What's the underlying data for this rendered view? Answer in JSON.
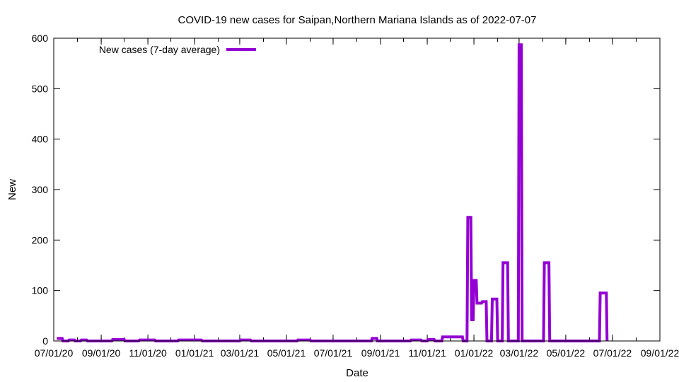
{
  "chart_data": {
    "type": "line",
    "title": "COVID-19 new cases for Saipan,Northern Mariana Islands as of 2022-07-07",
    "xlabel": "Date",
    "ylabel": "New",
    "xlim": [
      "2020-07-01",
      "2022-09-01"
    ],
    "ylim": [
      0,
      600
    ],
    "grid": false,
    "legend_position": "top-left",
    "x_ticks": [
      "07/01/20",
      "09/01/20",
      "11/01/20",
      "01/01/21",
      "03/01/21",
      "05/01/21",
      "07/01/21",
      "09/01/21",
      "11/01/21",
      "01/01/22",
      "03/01/22",
      "05/01/22",
      "07/01/22",
      "09/01/22"
    ],
    "y_ticks": [
      "0",
      "100",
      "200",
      "300",
      "400",
      "500",
      "600"
    ],
    "series": [
      {
        "name": "New cases (7-day average)",
        "color": "#9400d3",
        "x": [
          "2020-07-05",
          "2020-07-12",
          "2020-07-13",
          "2020-07-20",
          "2020-07-21",
          "2020-07-28",
          "2020-07-29",
          "2020-08-05",
          "2020-08-06",
          "2020-08-13",
          "2020-08-14",
          "2020-09-15",
          "2020-09-16",
          "2020-10-01",
          "2020-10-02",
          "2020-10-20",
          "2020-10-21",
          "2020-11-10",
          "2020-11-11",
          "2020-12-10",
          "2020-12-11",
          "2021-01-10",
          "2021-01-11",
          "2021-03-01",
          "2021-03-02",
          "2021-03-15",
          "2021-03-16",
          "2021-05-15",
          "2021-05-16",
          "2021-06-01",
          "2021-06-02",
          "2021-08-20",
          "2021-08-21",
          "2021-08-27",
          "2021-08-28",
          "2021-10-10",
          "2021-10-11",
          "2021-10-24",
          "2021-10-25",
          "2021-11-01",
          "2021-11-02",
          "2021-11-10",
          "2021-11-11",
          "2021-11-20",
          "2021-11-21",
          "2021-12-17",
          "2021-12-18",
          "2021-12-23",
          "2021-12-24",
          "2021-12-28",
          "2021-12-29",
          "2021-12-31",
          "2022-01-01",
          "2022-01-04",
          "2022-01-05",
          "2022-01-11",
          "2022-01-12",
          "2022-01-17",
          "2022-01-18",
          "2022-01-24",
          "2022-01-25",
          "2022-01-31",
          "2022-02-01",
          "2022-02-07",
          "2022-02-08",
          "2022-02-14",
          "2022-02-15",
          "2022-02-21",
          "2022-02-22",
          "2022-02-28",
          "2022-03-01",
          "2022-03-04",
          "2022-03-05",
          "2022-04-02",
          "2022-04-03",
          "2022-04-09",
          "2022-04-10",
          "2022-06-14",
          "2022-06-15",
          "2022-06-23",
          "2022-06-24"
        ],
        "y": [
          5,
          5,
          0,
          0,
          2,
          2,
          0,
          0,
          2,
          2,
          0,
          0,
          3,
          3,
          0,
          0,
          2,
          2,
          0,
          0,
          2,
          2,
          0,
          0,
          2,
          2,
          0,
          0,
          2,
          2,
          0,
          0,
          5,
          5,
          0,
          0,
          2,
          2,
          0,
          0,
          3,
          3,
          0,
          0,
          8,
          8,
          0,
          0,
          245,
          245,
          42,
          42,
          120,
          120,
          75,
          75,
          78,
          78,
          0,
          0,
          83,
          83,
          0,
          0,
          155,
          155,
          0,
          0,
          0,
          0,
          587,
          587,
          0,
          0,
          155,
          155,
          0,
          0,
          95,
          95,
          0
        ]
      }
    ]
  }
}
